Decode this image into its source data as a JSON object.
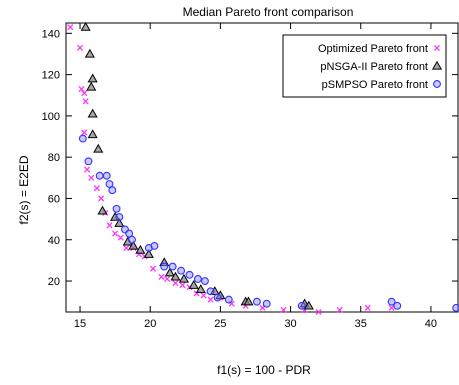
{
  "chart_data": {
    "type": "scatter",
    "title": "Median Pareto front comparison",
    "xlabel": "f1(s) = 100 - PDR",
    "ylabel": "f2(s) = E2ED",
    "xlim": [
      14,
      42
    ],
    "ylim": [
      5,
      145
    ],
    "xticks": [
      "15",
      "20",
      "25",
      "30",
      "35",
      "40"
    ],
    "yticks": [
      "20",
      "40",
      "60",
      "80",
      "100",
      "120",
      "140"
    ],
    "grid": false,
    "legend_position": "top-right",
    "series": [
      {
        "name": "Optimized Pareto front",
        "marker": "cross",
        "color": "#ff33ff",
        "points": [
          [
            14.3,
            143
          ],
          [
            15.0,
            133
          ],
          [
            15.1,
            113
          ],
          [
            15.3,
            111
          ],
          [
            15.4,
            107
          ],
          [
            15.3,
            92
          ],
          [
            15.5,
            74
          ],
          [
            15.8,
            70
          ],
          [
            16.2,
            65
          ],
          [
            16.5,
            60
          ],
          [
            16.8,
            53
          ],
          [
            17.1,
            47
          ],
          [
            17.5,
            43
          ],
          [
            17.9,
            41
          ],
          [
            18.3,
            36
          ],
          [
            18.8,
            36
          ],
          [
            19.2,
            33
          ],
          [
            19.6,
            32
          ],
          [
            20.2,
            26
          ],
          [
            20.8,
            22
          ],
          [
            21.2,
            21
          ],
          [
            21.8,
            19
          ],
          [
            22.3,
            18
          ],
          [
            22.8,
            17
          ],
          [
            23.3,
            14
          ],
          [
            23.8,
            13
          ],
          [
            24.3,
            11
          ],
          [
            25.0,
            12
          ],
          [
            25.8,
            9
          ],
          [
            26.8,
            8
          ],
          [
            28.0,
            7
          ],
          [
            29.5,
            6
          ],
          [
            31.0,
            6
          ],
          [
            32.0,
            5
          ],
          [
            33.5,
            6
          ],
          [
            35.5,
            7
          ],
          [
            37.2,
            7
          ]
        ]
      },
      {
        "name": "pNSGA-II Pareto front",
        "marker": "triangle",
        "color": "#000000",
        "points": [
          [
            15.4,
            143
          ],
          [
            15.7,
            130
          ],
          [
            15.9,
            118
          ],
          [
            15.8,
            114
          ],
          [
            15.9,
            101
          ],
          [
            15.9,
            91
          ],
          [
            16.3,
            84
          ],
          [
            16.6,
            54
          ],
          [
            17.5,
            51
          ],
          [
            17.8,
            48
          ],
          [
            18.4,
            39
          ],
          [
            18.8,
            37
          ],
          [
            19.3,
            35
          ],
          [
            19.9,
            33
          ],
          [
            21.0,
            29
          ],
          [
            21.4,
            24
          ],
          [
            21.8,
            22
          ],
          [
            22.4,
            21
          ],
          [
            23.1,
            18
          ],
          [
            23.6,
            16
          ],
          [
            24.6,
            15
          ],
          [
            25.0,
            13
          ],
          [
            26.8,
            10
          ],
          [
            27.0,
            10
          ],
          [
            31.0,
            9
          ],
          [
            31.3,
            8
          ]
        ]
      },
      {
        "name": "pSMPSO Pareto front",
        "marker": "circle",
        "color": "#3333ff",
        "points": [
          [
            15.2,
            89
          ],
          [
            15.6,
            78
          ],
          [
            16.4,
            71
          ],
          [
            16.9,
            71
          ],
          [
            17.1,
            67
          ],
          [
            17.3,
            64
          ],
          [
            17.6,
            55
          ],
          [
            17.8,
            51
          ],
          [
            18.2,
            45
          ],
          [
            18.5,
            43
          ],
          [
            18.7,
            40
          ],
          [
            19.9,
            36
          ],
          [
            20.3,
            37
          ],
          [
            21.0,
            27
          ],
          [
            21.6,
            27
          ],
          [
            22.2,
            25
          ],
          [
            22.8,
            23
          ],
          [
            23.4,
            21
          ],
          [
            23.9,
            20
          ],
          [
            24.3,
            15
          ],
          [
            24.8,
            12
          ],
          [
            25.6,
            11
          ],
          [
            27.6,
            10
          ],
          [
            28.3,
            9
          ],
          [
            30.8,
            8
          ],
          [
            37.2,
            10
          ],
          [
            37.6,
            8
          ],
          [
            41.8,
            7
          ]
        ]
      }
    ]
  }
}
